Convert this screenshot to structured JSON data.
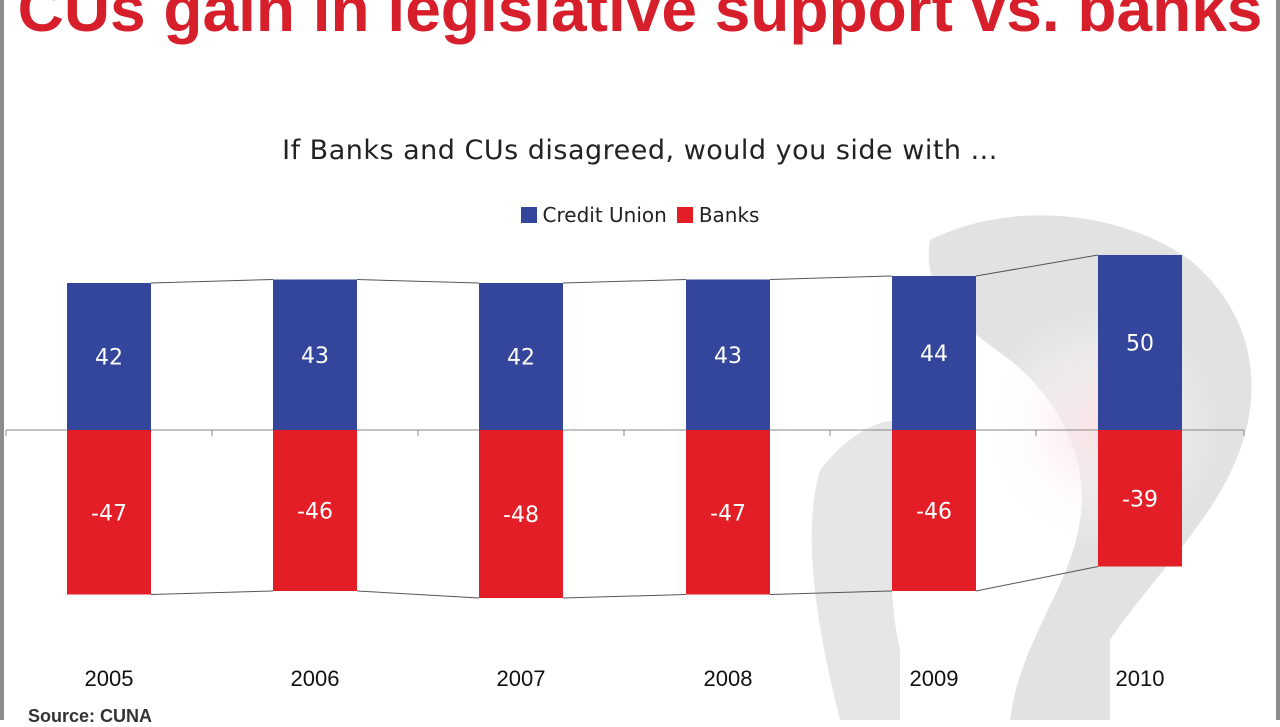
{
  "headline": "CUs gain in legislative support vs. banks",
  "source": "Source: CUNA",
  "colors": {
    "credit_union": "#33469c",
    "banks": "#e31e26",
    "headline": "#d71f2b"
  },
  "chart_data": {
    "type": "bar",
    "stacked": true,
    "title": "If Banks and CUs disagreed, would you side with ...",
    "categories": [
      "2005",
      "2006",
      "2007",
      "2008",
      "2009",
      "2010"
    ],
    "series": [
      {
        "name": "Credit Union",
        "values": [
          42,
          43,
          42,
          43,
          44,
          50
        ]
      },
      {
        "name": "Banks",
        "values": [
          -47,
          -46,
          -48,
          -47,
          -46,
          -39
        ]
      }
    ],
    "data_labels": true,
    "legend": "top-center",
    "xlabel": "",
    "ylabel": "",
    "ylim": [
      -55,
      55
    ],
    "grid": false
  }
}
